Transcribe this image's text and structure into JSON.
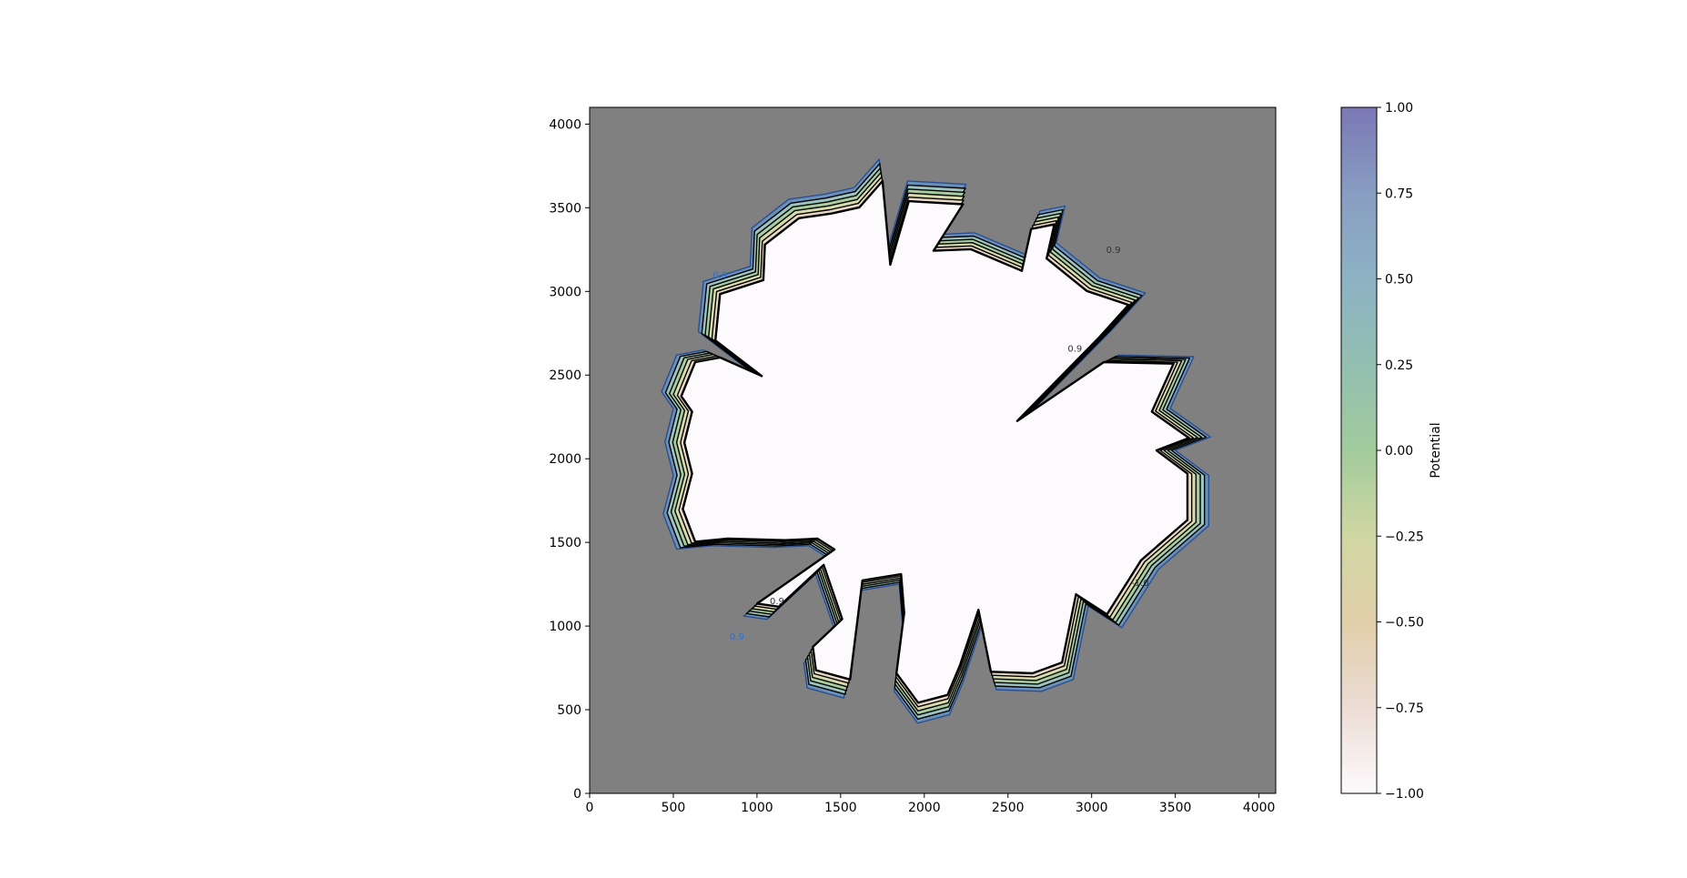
{
  "chart_data": {
    "type": "heatmap",
    "title": "",
    "xlabel": "",
    "ylabel": "",
    "xlim": [
      0,
      4100
    ],
    "ylim": [
      0,
      4100
    ],
    "x_ticks": [
      0,
      500,
      1000,
      1500,
      2000,
      2500,
      3000,
      3500,
      4000
    ],
    "y_ticks": [
      0,
      500,
      1000,
      1500,
      2000,
      2500,
      3000,
      3500,
      4000
    ],
    "background_color": "#808080",
    "region": {
      "center": [
        2000,
        2050
      ],
      "fill_color": "#fcfafc",
      "outline_color": "#000000",
      "boundary": [
        [
          1580,
          3620
        ],
        [
          1730,
          3790
        ],
        [
          1780,
          3250
        ],
        [
          1900,
          3660
        ],
        [
          2250,
          3640
        ],
        [
          2060,
          3340
        ],
        [
          2300,
          3350
        ],
        [
          2630,
          3210
        ],
        [
          2690,
          3480
        ],
        [
          2840,
          3510
        ],
        [
          2790,
          3290
        ],
        [
          3050,
          3080
        ],
        [
          3320,
          2990
        ],
        [
          3130,
          2780
        ],
        [
          2600,
          2240
        ],
        [
          3160,
          2620
        ],
        [
          3610,
          2610
        ],
        [
          3470,
          2300
        ],
        [
          3710,
          2130
        ],
        [
          3500,
          2050
        ],
        [
          3700,
          1900
        ],
        [
          3700,
          1600
        ],
        [
          3400,
          1340
        ],
        [
          3180,
          990
        ],
        [
          2980,
          1120
        ],
        [
          2890,
          680
        ],
        [
          2700,
          610
        ],
        [
          2430,
          620
        ],
        [
          2350,
          1020
        ],
        [
          2230,
          660
        ],
        [
          2150,
          470
        ],
        [
          1960,
          420
        ],
        [
          1820,
          610
        ],
        [
          1870,
          1000
        ],
        [
          1850,
          1250
        ],
        [
          1600,
          1210
        ],
        [
          1520,
          570
        ],
        [
          1300,
          630
        ],
        [
          1280,
          780
        ],
        [
          1470,
          960
        ],
        [
          1350,
          1310
        ],
        [
          1060,
          1040
        ],
        [
          920,
          1060
        ],
        [
          1420,
          1410
        ],
        [
          1310,
          1480
        ],
        [
          1100,
          1470
        ],
        [
          730,
          1480
        ],
        [
          520,
          1460
        ],
        [
          440,
          1670
        ],
        [
          500,
          1900
        ],
        [
          450,
          2100
        ],
        [
          500,
          2300
        ],
        [
          430,
          2400
        ],
        [
          520,
          2620
        ],
        [
          680,
          2650
        ],
        [
          950,
          2530
        ],
        [
          650,
          2760
        ],
        [
          680,
          3060
        ],
        [
          960,
          3150
        ],
        [
          970,
          3380
        ],
        [
          1190,
          3550
        ],
        [
          1400,
          3580
        ]
      ]
    },
    "series": [
      {
        "name": "contour",
        "level": -1.0
      },
      {
        "name": "contour",
        "level": -0.5
      },
      {
        "name": "contour",
        "level": 0.0
      },
      {
        "name": "contour",
        "level": 0.5
      },
      {
        "name": "contour",
        "level": 0.9
      }
    ],
    "contour_labels": [
      {
        "text": "0.9",
        "x": 780,
        "y": 3080,
        "color": "#2a6fd0"
      },
      {
        "text": "0.9",
        "x": 3130,
        "y": 3230,
        "color": "#333333"
      },
      {
        "text": "0.9",
        "x": 2900,
        "y": 2640,
        "color": "#333333"
      },
      {
        "text": "-1.0",
        "x": 3290,
        "y": 1240,
        "color": "#333333"
      },
      {
        "text": "0.9",
        "x": 1120,
        "y": 1130,
        "color": "#333333"
      },
      {
        "text": "0.9",
        "x": 880,
        "y": 920,
        "color": "#2a6fd0"
      }
    ],
    "colorbar": {
      "label": "Potential",
      "min": -1.0,
      "max": 1.0,
      "tick_values": [
        -1.0,
        -0.75,
        -0.5,
        -0.25,
        0.0,
        0.25,
        0.5,
        0.75,
        1.0
      ],
      "tick_labels": [
        "−1.00",
        "−0.75",
        "−0.50",
        "−0.25",
        "0.00",
        "0.25",
        "0.50",
        "0.75",
        "1.00"
      ],
      "colors": [
        "#fdfafd",
        "#ecdcd4",
        "#e1cfaa",
        "#d0d7a3",
        "#a2cb9c",
        "#92bfb1",
        "#8db2c4",
        "#889dc2",
        "#7b78b5"
      ]
    }
  }
}
